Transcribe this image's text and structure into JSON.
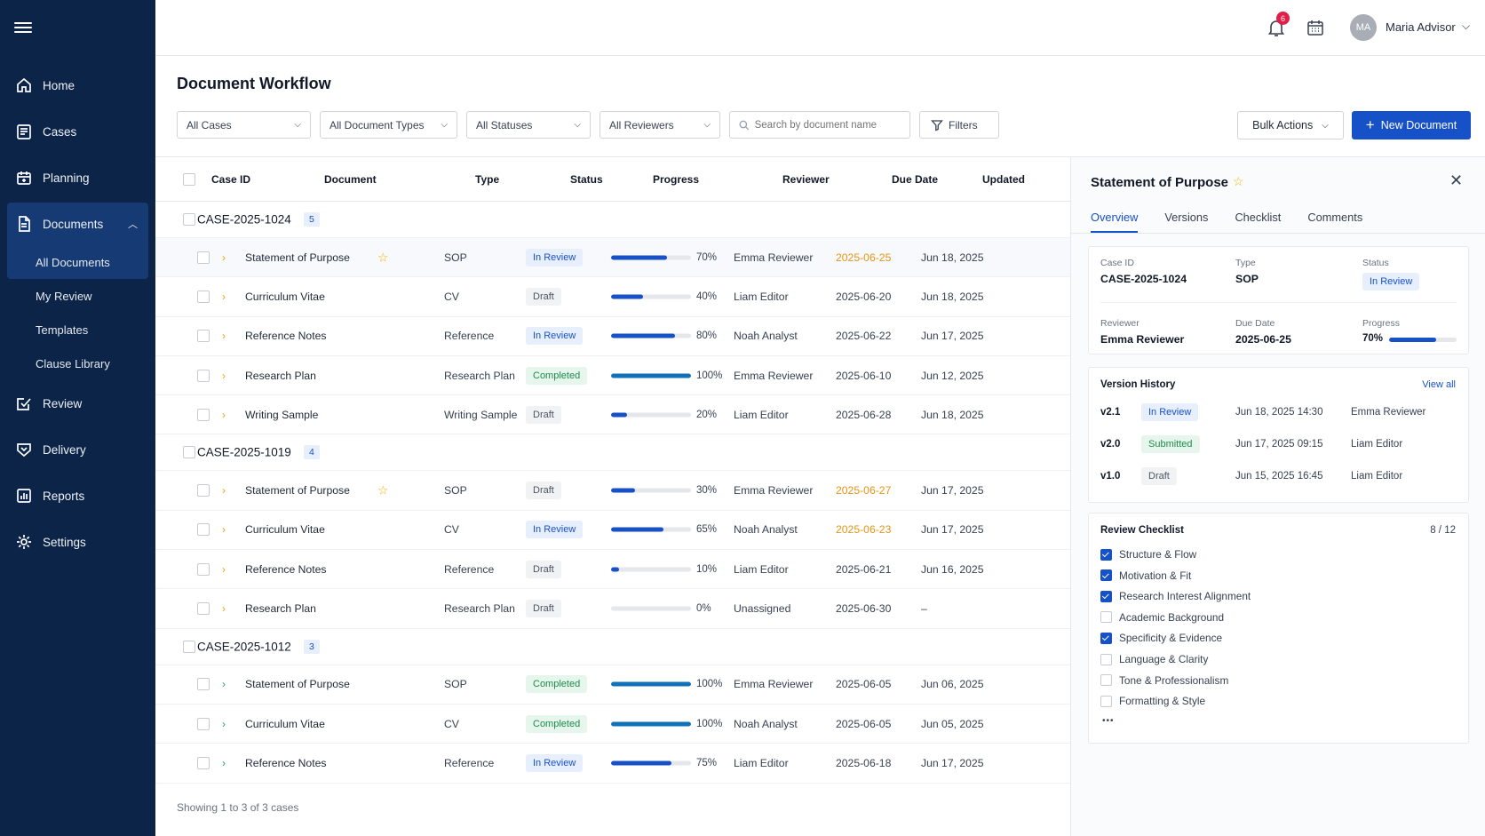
{
  "sidebar": {
    "items": [
      {
        "label": "Home",
        "icon": "home-icon"
      },
      {
        "label": "Cases",
        "icon": "cases-icon"
      },
      {
        "label": "Planning",
        "icon": "planning-icon"
      },
      {
        "label": "Documents",
        "icon": "document-icon"
      },
      {
        "label": "Review",
        "icon": "review-icon"
      },
      {
        "label": "Delivery",
        "icon": "delivery-icon"
      },
      {
        "label": "Reports",
        "icon": "reports-icon"
      },
      {
        "label": "Settings",
        "icon": "settings-icon"
      }
    ],
    "documents_sub": [
      "All Documents",
      "My Review",
      "Templates",
      "Clause Library"
    ]
  },
  "topbar": {
    "notification_count": "6",
    "avatar_initials": "MA",
    "user_name": "Maria Advisor"
  },
  "page": {
    "title": "Document Workflow",
    "filters": {
      "cases": "All Cases",
      "types": "All Document Types",
      "statuses": "All Statuses",
      "reviewers": "All Reviewers",
      "search_placeholder": "Search by document name",
      "filters_label": "Filters"
    },
    "bulk_actions": "Bulk Actions",
    "new_document": "New Document"
  },
  "table": {
    "columns": [
      "Case ID",
      "Document",
      "Type",
      "Status",
      "Progress",
      "Reviewer",
      "Due Date",
      "Updated"
    ],
    "groups": [
      {
        "case_id": "CASE-2025-1024",
        "count": "5",
        "rows": [
          {
            "document": "Statement of Purpose",
            "starred": true,
            "type": "SOP",
            "status": "In Review",
            "progress": 70,
            "progress_label": "70%",
            "reviewer": "Emma Reviewer",
            "due": "2025-06-25",
            "due_warn": true,
            "updated": "Jun 18, 2025",
            "highlight": true
          },
          {
            "document": "Curriculum Vitae",
            "type": "CV",
            "status": "Draft",
            "progress": 40,
            "progress_label": "40%",
            "reviewer": "Liam Editor",
            "due": "2025-06-20",
            "updated": "Jun 18, 2025"
          },
          {
            "document": "Reference Notes",
            "type": "Reference",
            "status": "In Review",
            "progress": 80,
            "progress_label": "80%",
            "reviewer": "Noah Analyst",
            "due": "2025-06-22",
            "updated": "Jun 17, 2025"
          },
          {
            "document": "Research Plan",
            "type": "Research Plan",
            "status": "Completed",
            "progress": 100,
            "progress_label": "100%",
            "reviewer": "Emma Reviewer",
            "due": "2025-06-10",
            "updated": "Jun 12, 2025"
          },
          {
            "document": "Writing Sample",
            "type": "Writing Sample",
            "status": "Draft",
            "progress": 20,
            "progress_label": "20%",
            "reviewer": "Liam Editor",
            "due": "2025-06-28",
            "updated": "Jun 18, 2025"
          }
        ]
      },
      {
        "case_id": "CASE-2025-1019",
        "count": "4",
        "rows": [
          {
            "document": "Statement of Purpose",
            "starred": true,
            "type": "SOP",
            "status": "Draft",
            "progress": 30,
            "progress_label": "30%",
            "reviewer": "Emma Reviewer",
            "due": "2025-06-27",
            "due_warn": true,
            "updated": "Jun 17, 2025"
          },
          {
            "document": "Curriculum Vitae",
            "type": "CV",
            "status": "In Review",
            "progress": 65,
            "progress_label": "65%",
            "reviewer": "Noah Analyst",
            "due": "2025-06-23",
            "due_warn": true,
            "updated": "Jun 17, 2025"
          },
          {
            "document": "Reference Notes",
            "type": "Reference",
            "status": "Draft",
            "progress": 10,
            "progress_label": "10%",
            "reviewer": "Liam Editor",
            "due": "2025-06-21",
            "updated": "Jun 16, 2025"
          },
          {
            "document": "Research Plan",
            "type": "Research Plan",
            "status": "Draft",
            "progress": 0,
            "progress_label": "0%",
            "reviewer": "Unassigned",
            "due": "2025-06-30",
            "updated": "–"
          }
        ]
      },
      {
        "case_id": "CASE-2025-1012",
        "count": "3",
        "arrow": "green",
        "rows": [
          {
            "document": "Statement of Purpose",
            "type": "SOP",
            "status": "Completed",
            "progress": 100,
            "progress_label": "100%",
            "reviewer": "Emma Reviewer",
            "due": "2025-06-05",
            "updated": "Jun 06, 2025"
          },
          {
            "document": "Curriculum Vitae",
            "type": "CV",
            "status": "Completed",
            "progress": 100,
            "progress_label": "100%",
            "reviewer": "Noah Analyst",
            "due": "2025-06-05",
            "updated": "Jun 05, 2025"
          },
          {
            "document": "Reference Notes",
            "type": "Reference",
            "status": "In Review",
            "progress": 75,
            "progress_label": "75%",
            "reviewer": "Liam Editor",
            "due": "2025-06-18",
            "updated": "Jun 17, 2025"
          }
        ]
      }
    ],
    "footer": "Showing 1 to 3 of 3 cases"
  },
  "panel": {
    "title": "Statement of Purpose",
    "tabs": [
      "Overview",
      "Versions",
      "Checklist",
      "Comments"
    ],
    "overview": {
      "case_id_label": "Case ID",
      "case_id": "CASE-2025-1024",
      "type_label": "Type",
      "type": "SOP",
      "status_label": "Status",
      "status": "In Review",
      "reviewer_label": "Reviewer",
      "reviewer": "Emma Reviewer",
      "due_label": "Due Date",
      "due": "2025-06-25",
      "progress_label": "Progress",
      "progress": "70%",
      "progress_value": 70
    },
    "version_history": {
      "title": "Version History",
      "view_all": "View all",
      "versions": [
        {
          "version": "v2.1",
          "status": "In Review",
          "date": "Jun 18, 2025 14:30",
          "author": "Emma Reviewer"
        },
        {
          "version": "v2.0",
          "status": "Submitted",
          "date": "Jun 17, 2025 09:15",
          "author": "Liam Editor"
        },
        {
          "version": "v1.0",
          "status": "Draft",
          "date": "Jun 15, 2025 16:45",
          "author": "Liam Editor"
        }
      ]
    },
    "checklist": {
      "title": "Review Checklist",
      "count": "8 / 12",
      "items": [
        {
          "label": "Structure & Flow",
          "checked": true
        },
        {
          "label": "Motivation & Fit",
          "checked": true
        },
        {
          "label": "Research Interest Alignment",
          "checked": true
        },
        {
          "label": "Academic Background",
          "checked": false
        },
        {
          "label": "Specificity & Evidence",
          "checked": true
        },
        {
          "label": "Language & Clarity",
          "checked": false
        },
        {
          "label": "Tone & Professionalism",
          "checked": false
        },
        {
          "label": "Formatting & Style",
          "checked": false
        }
      ],
      "more": "•••"
    }
  },
  "colors": {
    "sidebar": "#0b2447",
    "accent": "#1751c7",
    "warn": "#e69514",
    "success": "#1e8a4c"
  }
}
